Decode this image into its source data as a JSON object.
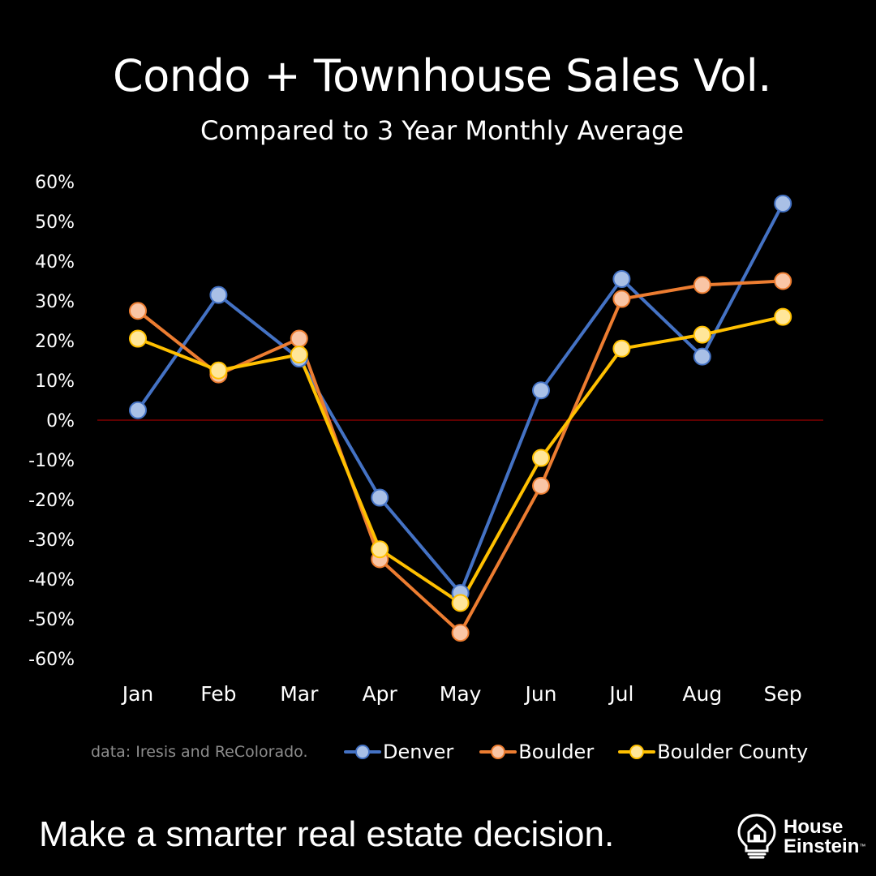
{
  "chart_data": {
    "type": "line",
    "title": "Condo + Townhouse Sales Vol.",
    "subtitle": "Compared to 3 Year Monthly Average",
    "categories": [
      "Jan",
      "Feb",
      "Mar",
      "Apr",
      "May",
      "Jun",
      "Jul",
      "Aug",
      "Sep"
    ],
    "ylim": [
      -60,
      60
    ],
    "yticks": [
      60,
      50,
      40,
      30,
      20,
      10,
      0,
      -10,
      -20,
      -30,
      -40,
      -50,
      -60
    ],
    "ytick_labels": [
      "60%",
      "50%",
      "40%",
      "30%",
      "20%",
      "10%",
      "0%",
      "-10%",
      "-20%",
      "-30%",
      "-40%",
      "-50%",
      "-60%"
    ],
    "zero_line_color": "#c00000",
    "series": [
      {
        "name": "Denver",
        "color": "#4472c4",
        "marker_fill": "#a9c0e6",
        "values": [
          2.5,
          31.5,
          15.5,
          -19.5,
          -43.5,
          7.5,
          35.5,
          16,
          54.5
        ]
      },
      {
        "name": "Boulder",
        "color": "#ed7d31",
        "marker_fill": "#f9c5a5",
        "values": [
          27.5,
          11.5,
          20.5,
          -35,
          -53.5,
          -16.5,
          30.5,
          34,
          35
        ]
      },
      {
        "name": "Boulder County",
        "color": "#ffc000",
        "marker_fill": "#ffe699",
        "values": [
          20.5,
          12.5,
          16.5,
          -32.5,
          -46,
          -9.5,
          18,
          21.5,
          26
        ]
      }
    ],
    "legend_position": "bottom",
    "source_note": "data: Iresis and ReColorado."
  },
  "footer": {
    "tagline": "Make a smarter real estate decision.",
    "logo_line1": "House",
    "logo_line2": "Einstein",
    "logo_tm": "™"
  }
}
